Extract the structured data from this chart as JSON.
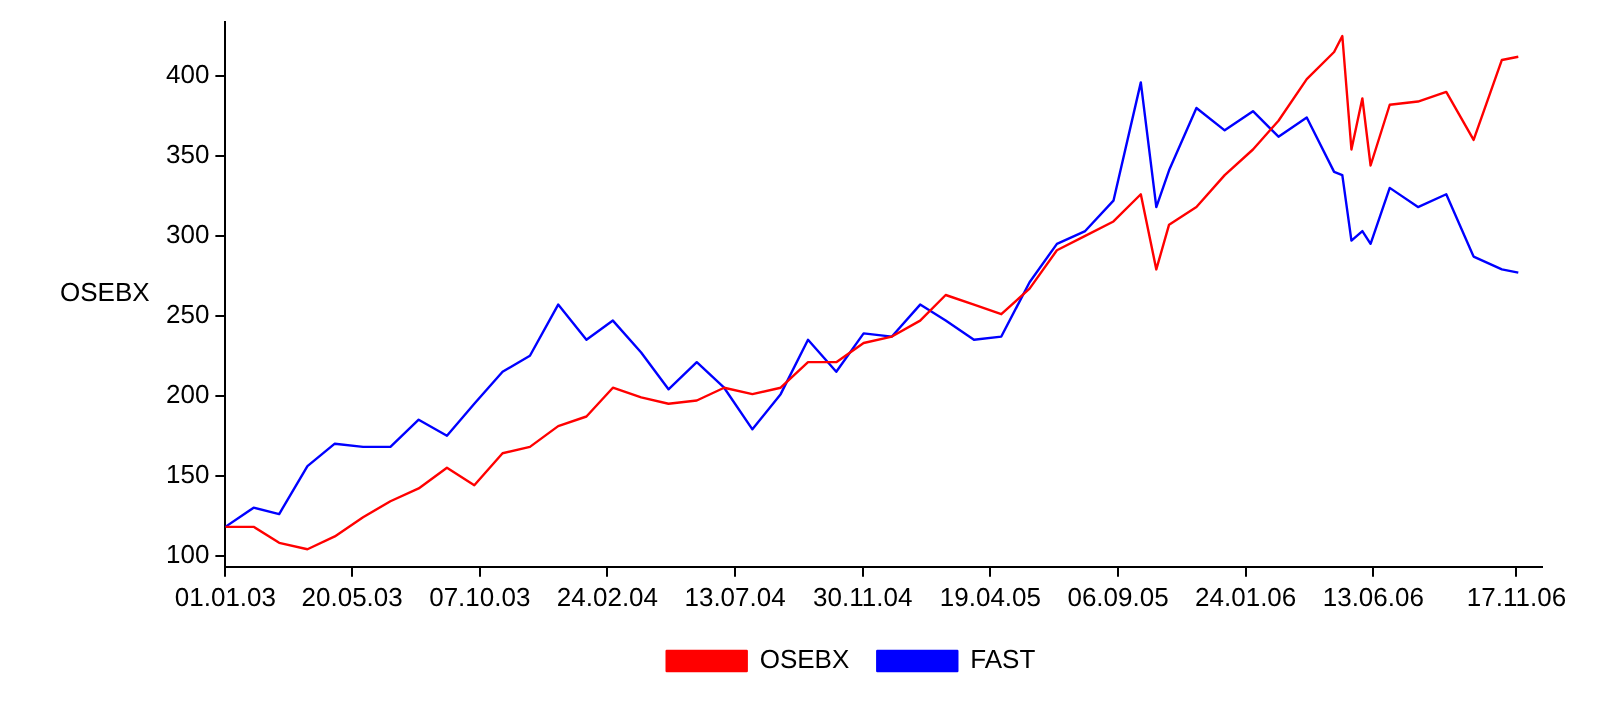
{
  "chart_data": {
    "type": "line",
    "ylabel": "OSEBX",
    "x": [
      "2003-01-01",
      "2003-02-01",
      "2003-03-01",
      "2003-04-01",
      "2003-05-01",
      "2003-06-01",
      "2003-07-01",
      "2003-08-01",
      "2003-09-01",
      "2003-10-01",
      "2003-11-01",
      "2003-12-01",
      "2004-01-01",
      "2004-02-01",
      "2004-03-01",
      "2004-04-01",
      "2004-05-01",
      "2004-06-01",
      "2004-07-01",
      "2004-08-01",
      "2004-09-01",
      "2004-10-01",
      "2004-11-01",
      "2004-12-01",
      "2005-01-01",
      "2005-02-01",
      "2005-03-01",
      "2005-04-01",
      "2005-05-01",
      "2005-06-01",
      "2005-07-01",
      "2005-08-01",
      "2005-09-01",
      "2005-10-01",
      "2005-10-18",
      "2005-11-01",
      "2005-12-01",
      "2006-01-01",
      "2006-02-01",
      "2006-03-01",
      "2006-04-01",
      "2006-05-01",
      "2006-05-10",
      "2006-05-20",
      "2006-06-01",
      "2006-06-10",
      "2006-07-01",
      "2006-08-01",
      "2006-09-01",
      "2006-10-01",
      "2006-11-01",
      "2006-11-19"
    ],
    "series": [
      {
        "name": "OSEBX",
        "color": "#ff0000",
        "values": [
          118,
          118,
          108,
          104,
          112,
          124,
          134,
          142,
          155,
          144,
          164,
          168,
          181,
          187,
          205,
          199,
          195,
          197,
          205,
          201,
          205,
          221,
          221,
          233,
          237,
          247,
          263,
          257,
          251,
          267,
          291,
          300,
          309,
          326,
          279,
          307,
          318,
          338,
          354,
          372,
          398,
          415,
          425,
          354,
          386,
          344,
          382,
          384,
          390,
          360,
          410,
          412
        ]
      },
      {
        "name": "FAST",
        "color": "#0000ff",
        "values": [
          118,
          130,
          126,
          156,
          170,
          168,
          168,
          185,
          175,
          195,
          215,
          225,
          257,
          235,
          247,
          227,
          204,
          221,
          205,
          179,
          201,
          235,
          215,
          239,
          237,
          257,
          247,
          235,
          237,
          271,
          295,
          303,
          322,
          396,
          318,
          341,
          380,
          366,
          378,
          362,
          374,
          340,
          338,
          297,
          303,
          295,
          330,
          318,
          326,
          287,
          279,
          277
        ]
      }
    ],
    "xlim": [
      "2003-01-01",
      "2006-12-15"
    ],
    "xticks": [
      {
        "value": "2003-01-01",
        "label": "01.01.03"
      },
      {
        "value": "2003-05-20",
        "label": "20.05.03"
      },
      {
        "value": "2003-10-07",
        "label": "07.10.03"
      },
      {
        "value": "2004-02-24",
        "label": "24.02.04"
      },
      {
        "value": "2004-07-13",
        "label": "13.07.04"
      },
      {
        "value": "2004-11-30",
        "label": "30.11.04"
      },
      {
        "value": "2005-04-19",
        "label": "19.04.05"
      },
      {
        "value": "2005-09-06",
        "label": "06.09.05"
      },
      {
        "value": "2006-01-24",
        "label": "24.01.06"
      },
      {
        "value": "2006-06-13",
        "label": "13.06.06"
      },
      {
        "value": "2006-11-17",
        "label": "17.11.06"
      }
    ],
    "ylim": [
      93,
      434
    ],
    "yticks": [
      100,
      150,
      200,
      250,
      300,
      350,
      400
    ],
    "grid": false,
    "legend": "bottom",
    "marker": "none",
    "line_style": "solid"
  }
}
